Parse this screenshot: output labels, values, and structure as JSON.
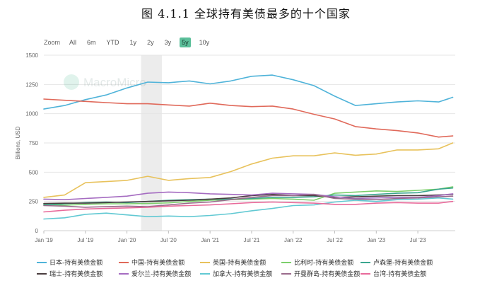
{
  "figure_title": "图 4.1.1  全球持有美债最多的十个国家",
  "toolbar": {
    "zoom_label": "Zoom",
    "ranges": [
      "All",
      "6m",
      "YTD",
      "1y",
      "2y",
      "3y",
      "5y",
      "10y"
    ],
    "active_range": "5y"
  },
  "watermark": "MacroMicro",
  "chart_data": {
    "type": "line",
    "ylabel": "Billions, USD",
    "ylim": [
      0,
      1500
    ],
    "yticks": [
      0,
      250,
      500,
      750,
      1000,
      1250,
      1500
    ],
    "xlim": [
      2019.0,
      2023.95
    ],
    "xticks": [
      {
        "value": 2019.0,
        "label": "Jan '19"
      },
      {
        "value": 2019.5,
        "label": "Jul '19"
      },
      {
        "value": 2020.0,
        "label": "Jan '20"
      },
      {
        "value": 2020.5,
        "label": "Jul '20"
      },
      {
        "value": 2021.0,
        "label": "Jan '21"
      },
      {
        "value": 2021.5,
        "label": "Jul '21"
      },
      {
        "value": 2022.0,
        "label": "Jan '22"
      },
      {
        "value": 2022.5,
        "label": "Jul '22"
      },
      {
        "value": 2023.0,
        "label": "Jan '23"
      },
      {
        "value": 2023.5,
        "label": "Jul '23"
      }
    ],
    "shaded_range": [
      2020.17,
      2020.42
    ],
    "x": [
      2019.0,
      2019.25,
      2019.5,
      2019.75,
      2020.0,
      2020.25,
      2020.5,
      2020.75,
      2021.0,
      2021.25,
      2021.5,
      2021.75,
      2022.0,
      2022.25,
      2022.5,
      2022.75,
      2023.0,
      2023.25,
      2023.5,
      2023.75,
      2023.92
    ],
    "series": [
      {
        "name": "日本-持有美债金额",
        "color": "#4fb3d9",
        "values": [
          1040,
          1070,
          1120,
          1160,
          1220,
          1270,
          1265,
          1280,
          1255,
          1280,
          1320,
          1330,
          1290,
          1240,
          1150,
          1070,
          1085,
          1100,
          1110,
          1100,
          1140
        ]
      },
      {
        "name": "中国-持有美债金额",
        "color": "#e0695a",
        "values": [
          1125,
          1115,
          1105,
          1095,
          1085,
          1085,
          1075,
          1065,
          1090,
          1070,
          1060,
          1065,
          1040,
          995,
          955,
          890,
          870,
          855,
          835,
          800,
          810
        ]
      },
      {
        "name": "英国-持有美债金额",
        "color": "#e8c25c",
        "values": [
          285,
          305,
          410,
          420,
          430,
          465,
          430,
          445,
          455,
          505,
          570,
          620,
          640,
          640,
          665,
          645,
          655,
          690,
          690,
          700,
          750
        ]
      },
      {
        "name": "比利时-持有美债金额",
        "color": "#7ccf6b",
        "values": [
          225,
          218,
          225,
          230,
          230,
          232,
          238,
          250,
          260,
          265,
          270,
          275,
          270,
          260,
          320,
          330,
          340,
          335,
          345,
          355,
          375
        ]
      },
      {
        "name": "卢森堡-持有美债金额",
        "color": "#3aa68f",
        "values": [
          220,
          230,
          240,
          245,
          240,
          250,
          260,
          265,
          270,
          270,
          275,
          285,
          285,
          290,
          305,
          300,
          310,
          320,
          325,
          355,
          365
        ]
      },
      {
        "name": "瑞士-持有美债金额",
        "color": "#4a3d3f",
        "values": [
          232,
          235,
          235,
          240,
          245,
          250,
          255,
          260,
          270,
          280,
          300,
          310,
          300,
          300,
          285,
          290,
          295,
          300,
          300,
          305,
          310
        ]
      },
      {
        "name": "爱尔兰-持有美债金额",
        "color": "#a56cc1",
        "values": [
          270,
          265,
          275,
          285,
          295,
          320,
          330,
          325,
          315,
          310,
          305,
          320,
          315,
          310,
          290,
          275,
          280,
          285,
          285,
          300,
          315
        ]
      },
      {
        "name": "加拿大-持有美债金额",
        "color": "#62c9d3",
        "values": [
          100,
          110,
          140,
          150,
          135,
          120,
          125,
          120,
          130,
          145,
          170,
          190,
          215,
          220,
          245,
          260,
          250,
          265,
          270,
          280,
          270
        ]
      },
      {
        "name": "开曼群岛-持有美债金额",
        "color": "#9a6b8c",
        "values": [
          215,
          210,
          200,
          205,
          210,
          205,
          220,
          235,
          245,
          265,
          285,
          300,
          300,
          310,
          275,
          270,
          265,
          275,
          280,
          290,
          295
        ]
      },
      {
        "name": "台湾-持有美债金额",
        "color": "#e86a9a",
        "values": [
          160,
          175,
          185,
          190,
          195,
          200,
          210,
          215,
          220,
          230,
          240,
          245,
          240,
          235,
          225,
          225,
          235,
          240,
          235,
          235,
          250
        ]
      }
    ]
  }
}
